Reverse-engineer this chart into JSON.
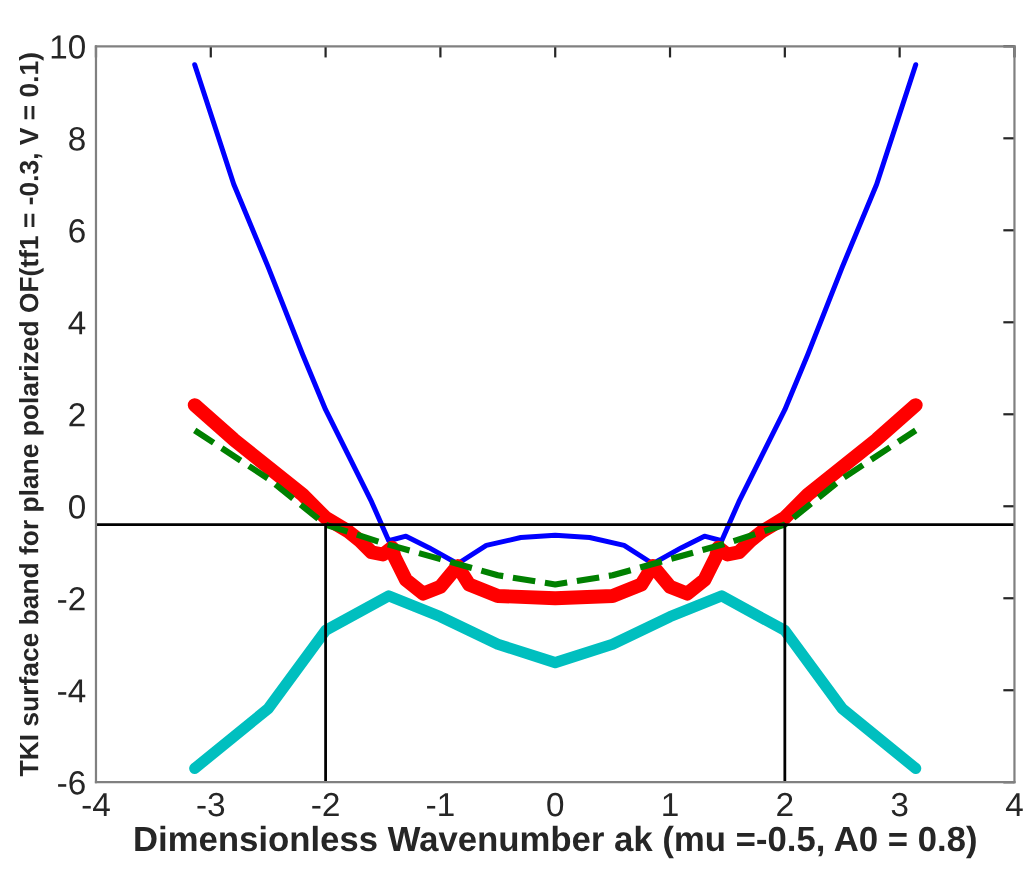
{
  "chart_data": {
    "type": "line",
    "xlabel": "Dimensionless Wavenumber ak (mu =-0.5, A0 = 0.8)",
    "ylabel": "TKI surface band for plane polarized OF(tf1 = -0.3, V = 0.1)",
    "xlim": [
      -4,
      4
    ],
    "ylim": [
      -6,
      10
    ],
    "xticks": [
      -4,
      -3,
      -2,
      -1,
      0,
      1,
      2,
      3,
      4
    ],
    "yticks": [
      -6,
      -4,
      -2,
      0,
      2,
      4,
      6,
      8,
      10
    ],
    "grid": false,
    "legend": false,
    "ref_lines": [
      {
        "axis": "y",
        "value": -0.4,
        "color": "#000000"
      }
    ],
    "series": [
      {
        "color": "#0000ff",
        "x": [
          -3.14,
          -2.8,
          -2.5,
          -2.2,
          -2.0,
          -1.8,
          -1.6,
          -1.45,
          -1.3,
          -1.1,
          -0.85,
          -0.6,
          -0.3,
          0,
          0.3,
          0.6,
          0.85,
          1.1,
          1.3,
          1.45,
          1.6,
          1.8,
          2.0,
          2.2,
          2.5,
          2.8,
          3.14
        ],
        "values": [
          9.6,
          7.0,
          5.2,
          3.3,
          2.1,
          1.1,
          0.1,
          -0.75,
          -0.65,
          -0.9,
          -1.25,
          -0.85,
          -0.68,
          -0.63,
          -0.68,
          -0.85,
          -1.25,
          -0.9,
          -0.65,
          -0.75,
          0.1,
          1.1,
          2.1,
          3.3,
          5.2,
          7.0,
          9.6
        ]
      },
      {
        "color": "#ff0000",
        "x": [
          -3.14,
          -2.8,
          -2.5,
          -2.2,
          -2.0,
          -1.8,
          -1.7,
          -1.6,
          -1.5,
          -1.42,
          -1.4,
          -1.3,
          -1.15,
          -1.0,
          -0.85,
          -0.75,
          -0.5,
          0,
          0.5,
          0.75,
          0.85,
          1.0,
          1.15,
          1.3,
          1.4,
          1.42,
          1.5,
          1.6,
          1.7,
          1.8,
          2.0,
          2.2,
          2.5,
          2.8,
          3.14
        ],
        "values": [
          2.2,
          1.45,
          0.85,
          0.25,
          -0.25,
          -0.55,
          -0.75,
          -1.0,
          -1.05,
          -0.9,
          -1.1,
          -1.6,
          -1.9,
          -1.75,
          -1.3,
          -1.7,
          -1.95,
          -2.0,
          -1.95,
          -1.7,
          -1.3,
          -1.75,
          -1.9,
          -1.6,
          -1.1,
          -0.9,
          -1.05,
          -1.0,
          -0.75,
          -0.55,
          -0.25,
          0.25,
          0.85,
          1.45,
          2.2
        ]
      },
      {
        "color": "#008000",
        "line_style": "dashed",
        "x": [
          -3.14,
          -2.5,
          -2.0,
          -1.5,
          -1.0,
          -0.5,
          0,
          0.5,
          1.0,
          1.5,
          2.0,
          2.5,
          3.14
        ],
        "values": [
          1.65,
          0.6,
          -0.4,
          -0.8,
          -1.15,
          -1.5,
          -1.7,
          -1.5,
          -1.15,
          -0.8,
          -0.4,
          0.6,
          1.65
        ]
      },
      {
        "color": "#00bfbf",
        "x": [
          -3.14,
          -2.5,
          -2.0,
          -1.45,
          -1.0,
          -0.5,
          0,
          0.5,
          1.0,
          1.45,
          2.0,
          2.5,
          3.14
        ],
        "values": [
          -5.7,
          -4.4,
          -2.7,
          -1.95,
          -2.4,
          -3.0,
          -3.4,
          -3.0,
          -2.4,
          -1.95,
          -2.7,
          -4.4,
          -5.7
        ]
      },
      {
        "color": "#000000",
        "x": [
          -2,
          -2
        ],
        "values": [
          -6,
          -0.4
        ]
      },
      {
        "color": "#000000",
        "x": [
          2,
          2
        ],
        "values": [
          -6,
          -0.4
        ]
      }
    ]
  }
}
